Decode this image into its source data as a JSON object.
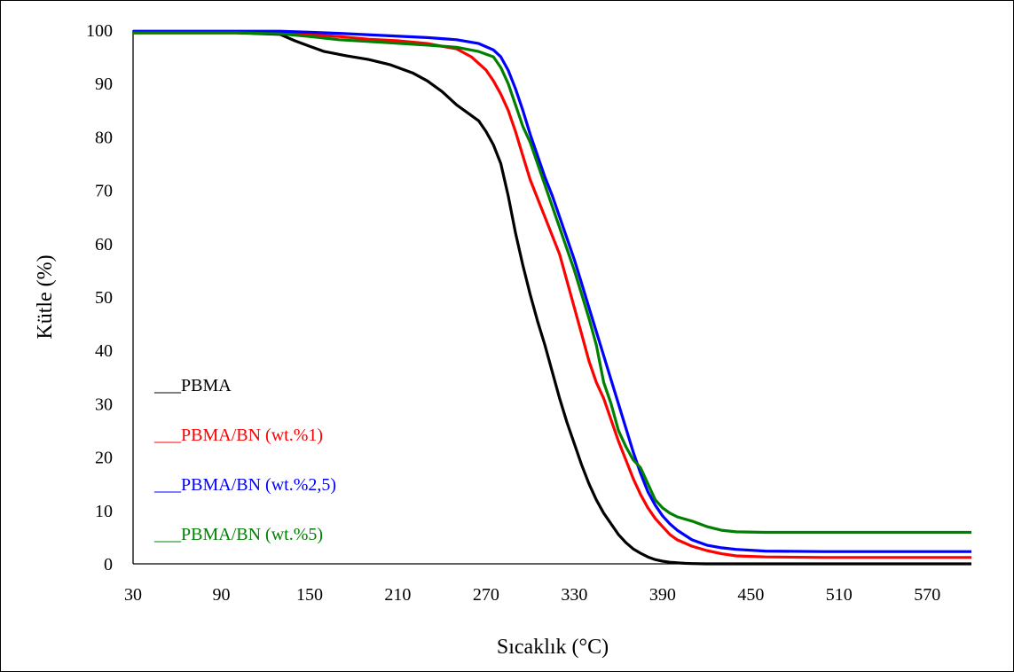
{
  "chart_data": {
    "type": "line",
    "title": "",
    "xlabel": "Sıcaklık (°C)",
    "ylabel": "Kütle (%)",
    "xlim": [
      30,
      600
    ],
    "ylim": [
      0,
      100
    ],
    "xticks": [
      30,
      90,
      150,
      210,
      270,
      330,
      390,
      450,
      510,
      570
    ],
    "yticks": [
      0,
      10,
      20,
      30,
      40,
      50,
      60,
      70,
      80,
      90,
      100
    ],
    "grid": false,
    "legend_position": "bottom-left",
    "legend_prefix": "___",
    "series": [
      {
        "name": "PBMA",
        "color": "#000000",
        "x": [
          30,
          60,
          100,
          130,
          140,
          150,
          160,
          175,
          190,
          205,
          220,
          230,
          240,
          250,
          260,
          265,
          270,
          275,
          280,
          285,
          290,
          295,
          300,
          305,
          310,
          315,
          320,
          325,
          330,
          335,
          340,
          345,
          350,
          355,
          360,
          365,
          370,
          375,
          380,
          385,
          390,
          395,
          400,
          405,
          410,
          420,
          440,
          480,
          540,
          600
        ],
        "y": [
          99.5,
          99.5,
          99.5,
          99.2,
          98,
          97,
          96,
          95.2,
          94.5,
          93.5,
          92,
          90.5,
          88.5,
          86,
          84,
          83,
          81,
          78.5,
          75,
          69,
          62,
          56,
          50.5,
          45.5,
          41,
          36,
          31,
          26.5,
          22.5,
          18.5,
          15,
          12,
          9.5,
          7.5,
          5.5,
          4,
          2.8,
          2,
          1.3,
          0.8,
          0.5,
          0.3,
          0.2,
          0.1,
          0.05,
          0,
          0,
          0,
          0,
          0
        ]
      },
      {
        "name": "PBMA/BN (wt.%1)",
        "color": "#ff0000",
        "x": [
          30,
          60,
          100,
          130,
          150,
          170,
          190,
          210,
          230,
          250,
          260,
          270,
          275,
          280,
          285,
          290,
          295,
          300,
          305,
          310,
          315,
          320,
          325,
          330,
          335,
          340,
          345,
          350,
          355,
          360,
          365,
          370,
          375,
          380,
          385,
          390,
          395,
          400,
          410,
          420,
          430,
          440,
          460,
          500,
          550,
          600
        ],
        "y": [
          99.5,
          99.5,
          99.5,
          99.5,
          99.2,
          98.8,
          98.3,
          98,
          97.5,
          96.5,
          95,
          92.5,
          90.5,
          88,
          85,
          81,
          76.5,
          72,
          68.5,
          65,
          61.5,
          58,
          53,
          48,
          43,
          38,
          34,
          31,
          27,
          23,
          19.5,
          16,
          13,
          10.5,
          8.5,
          7,
          5.5,
          4.5,
          3.3,
          2.5,
          1.9,
          1.5,
          1.3,
          1.2,
          1.2,
          1.2
        ]
      },
      {
        "name": "PBMA/BN (wt.%2,5)",
        "color": "#0000ff",
        "x": [
          30,
          60,
          100,
          130,
          150,
          170,
          200,
          230,
          250,
          265,
          275,
          280,
          285,
          290,
          295,
          300,
          305,
          310,
          315,
          320,
          325,
          330,
          335,
          340,
          345,
          350,
          355,
          360,
          365,
          370,
          375,
          380,
          385,
          390,
          395,
          400,
          410,
          420,
          430,
          440,
          460,
          500,
          550,
          600
        ],
        "y": [
          99.8,
          99.8,
          99.8,
          99.8,
          99.6,
          99.4,
          99,
          98.6,
          98.2,
          97.5,
          96.3,
          95,
          92.5,
          89,
          85,
          80.5,
          76.5,
          72.5,
          69,
          65,
          61,
          57,
          52.5,
          48,
          43.5,
          39,
          34.5,
          30,
          25.5,
          21,
          17,
          13.5,
          11,
          9,
          7.5,
          6.3,
          4.5,
          3.5,
          3,
          2.7,
          2.4,
          2.3,
          2.3,
          2.3
        ]
      },
      {
        "name": "PBMA/BN (wt.%5)",
        "color": "#008000",
        "x": [
          30,
          60,
          100,
          130,
          150,
          170,
          200,
          230,
          250,
          265,
          275,
          280,
          285,
          290,
          295,
          300,
          305,
          310,
          315,
          320,
          325,
          330,
          335,
          340,
          345,
          350,
          355,
          360,
          365,
          370,
          375,
          380,
          385,
          390,
          395,
          400,
          410,
          420,
          430,
          440,
          460,
          500,
          550,
          600
        ],
        "y": [
          99.5,
          99.5,
          99.5,
          99.3,
          98.8,
          98.2,
          97.7,
          97.2,
          96.8,
          96,
          95,
          93,
          90,
          86,
          82,
          79,
          75,
          71,
          67,
          63,
          59,
          55,
          50.5,
          46,
          41,
          34,
          30,
          25,
          22,
          19.5,
          18,
          15,
          12,
          10.5,
          9.5,
          8.8,
          8,
          7,
          6.3,
          6,
          5.9,
          5.9,
          5.9,
          5.9
        ]
      }
    ]
  }
}
